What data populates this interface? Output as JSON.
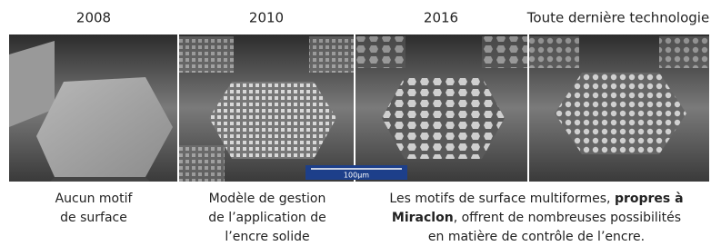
{
  "headings": [
    "2008",
    "2010",
    "2016",
    "Toute dernière technologie"
  ],
  "scale_bar": "100μm",
  "captions": [
    {
      "lines": [
        [
          {
            "text": "Aucun motif"
          }
        ],
        [
          {
            "text": "de surface"
          }
        ]
      ]
    },
    {
      "lines": [
        [
          {
            "text": "Modèle de gestion"
          }
        ],
        [
          {
            "text": "de l’application de"
          }
        ],
        [
          {
            "text": "l’encre solide"
          }
        ]
      ]
    },
    {
      "lines": [
        [
          {
            "text": "Les motifs de surface multiformes, "
          },
          {
            "text": "propres à",
            "bold": true
          }
        ],
        [
          {
            "text": "Miraclon",
            "bold": true
          },
          {
            "text": ", offrent de nombreuses possibilités"
          }
        ],
        [
          {
            "text": "en matière de contrôle de l’encre."
          }
        ]
      ]
    }
  ]
}
